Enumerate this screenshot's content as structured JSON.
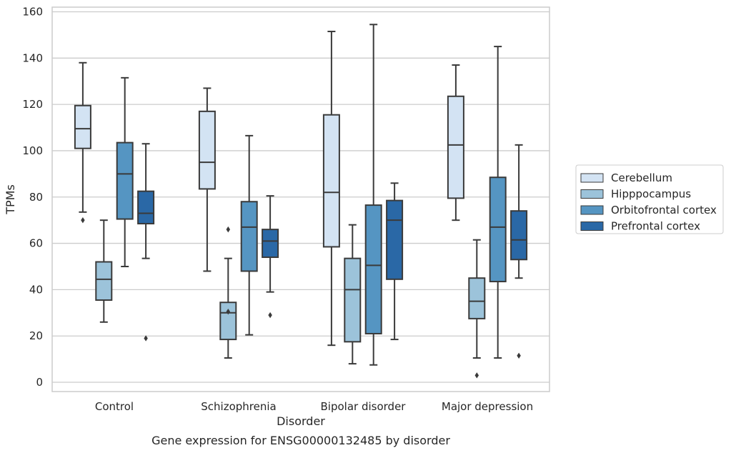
{
  "chart_data": {
    "type": "box",
    "caption": "Gene expression for ENSG00000132485 by disorder",
    "xlabel": "Disorder",
    "ylabel": "TPMs",
    "ylim": [
      -4,
      162
    ],
    "yticks": [
      0,
      20,
      40,
      60,
      80,
      100,
      120,
      140,
      160
    ],
    "grid": true,
    "legend_position": "right",
    "categories": [
      "Control",
      "Schizophrenia",
      "Bipolar disorder",
      "Major depression"
    ],
    "series": [
      {
        "name": "Cerebellum",
        "color": "#d3e3f3",
        "boxes": [
          {
            "whislo": 73.5,
            "q1": 101,
            "med": 109.5,
            "q3": 119.5,
            "whishi": 138,
            "fliers": [
              70
            ]
          },
          {
            "whislo": 48,
            "q1": 83.5,
            "med": 95,
            "q3": 117,
            "whishi": 127,
            "fliers": []
          },
          {
            "whislo": 16,
            "q1": 58.5,
            "med": 82,
            "q3": 115.5,
            "whishi": 151.5,
            "fliers": []
          },
          {
            "whislo": 70,
            "q1": 79.5,
            "med": 102.5,
            "q3": 123.5,
            "whishi": 137,
            "fliers": []
          }
        ]
      },
      {
        "name": "Hipppocampus",
        "color": "#9cc3da",
        "boxes": [
          {
            "whislo": 26,
            "q1": 35.5,
            "med": 44.5,
            "q3": 52,
            "whishi": 70,
            "fliers": []
          },
          {
            "whislo": 10.5,
            "q1": 18.5,
            "med": 30,
            "q3": 34.5,
            "whishi": 53.5,
            "fliers": [
              30.5,
              66
            ]
          },
          {
            "whislo": 8,
            "q1": 17.5,
            "med": 40,
            "q3": 53.5,
            "whishi": 68,
            "fliers": []
          },
          {
            "whislo": 10.5,
            "q1": 27.5,
            "med": 35,
            "q3": 45,
            "whishi": 61.5,
            "fliers": [
              3
            ]
          }
        ]
      },
      {
        "name": "Orbitofrontal cortex",
        "color": "#5595c2",
        "boxes": [
          {
            "whislo": 50,
            "q1": 70.5,
            "med": 90,
            "q3": 103.5,
            "whishi": 131.5,
            "fliers": []
          },
          {
            "whislo": 20.5,
            "q1": 48,
            "med": 67,
            "q3": 78,
            "whishi": 106.5,
            "fliers": []
          },
          {
            "whislo": 7.5,
            "q1": 21,
            "med": 50.5,
            "q3": 76.5,
            "whishi": 154.5,
            "fliers": []
          },
          {
            "whislo": 10.5,
            "q1": 43.5,
            "med": 67,
            "q3": 88.5,
            "whishi": 145,
            "fliers": []
          }
        ]
      },
      {
        "name": "Prefrontal cortex",
        "color": "#2a68a6",
        "boxes": [
          {
            "whislo": 53.5,
            "q1": 68.5,
            "med": 73,
            "q3": 82.5,
            "whishi": 103,
            "fliers": [
              19
            ]
          },
          {
            "whislo": 39,
            "q1": 54,
            "med": 61,
            "q3": 66,
            "whishi": 80.5,
            "fliers": [
              29
            ]
          },
          {
            "whislo": 18.5,
            "q1": 44.5,
            "med": 70,
            "q3": 78.5,
            "whishi": 86,
            "fliers": []
          },
          {
            "whislo": 45,
            "q1": 53,
            "med": 61.5,
            "q3": 74,
            "whishi": 102.5,
            "fliers": [
              11.5
            ]
          }
        ]
      }
    ]
  }
}
